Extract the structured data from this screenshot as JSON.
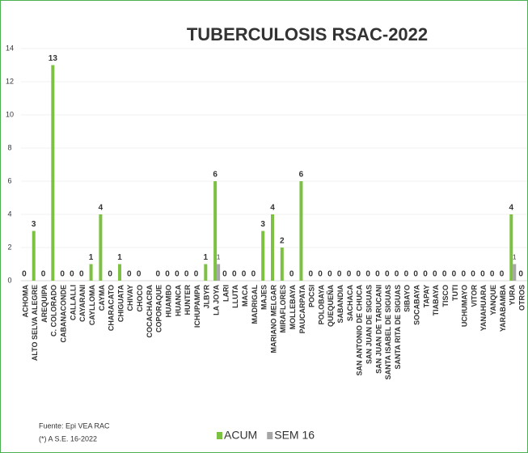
{
  "chart_data": {
    "type": "bar",
    "title": "TUBERCULOSIS RSAC-2022",
    "categories": [
      "ACHOMA",
      "ALTO SELVA ALEGRE",
      "AREQUIPA",
      "C. COLORADO",
      "CABANACONDE",
      "CALLALLI",
      "CAYARANI",
      "CAYLLOMA",
      "CAYMA",
      "CHARACATO",
      "CHIGUATA",
      "CHIVAY",
      "CHOCO",
      "COCACHACRA",
      "COPORAQUE",
      "HUAMBO",
      "HUANCA",
      "HUNTER",
      "ICHUPAMPA",
      "JLBYR",
      "LA JOYA",
      "LARI",
      "LLUTA",
      "MACA",
      "MADRIGAL",
      "MAJES",
      "MARIANO MELGAR",
      "MIRAFLORES",
      "MOLLEBAYA",
      "PAUCARPATA",
      "POCSI",
      "POLOBAYA",
      "QUEQUEÑA",
      "SABANDIA",
      "SACHACA",
      "SAN ANTONIO DE CHUCA",
      "SAN JUAN DE SIGUAS",
      "SAN JUAN DE TARUCANI",
      "SANTA ISABEL DE SIGUAS",
      "SANTA RITA DE SIGUAS",
      "SIBAYO",
      "SOCABAYA",
      "TAPAY",
      "TIABAYA",
      "TISCO",
      "TUTI",
      "UCHUMAYO",
      "VITOR",
      "YANAHUARA",
      "YANQUE",
      "YARABAMBA",
      "YURA",
      "OTROS"
    ],
    "series": [
      {
        "name": "ACUM",
        "color": "#7cc142",
        "values": [
          0,
          3,
          0,
          13,
          0,
          0,
          0,
          1,
          4,
          0,
          1,
          0,
          0,
          null,
          0,
          0,
          0,
          0,
          0,
          1,
          6,
          0,
          0,
          0,
          0,
          3,
          4,
          2,
          0,
          6,
          0,
          0,
          0,
          0,
          0,
          0,
          0,
          0,
          0,
          0,
          0,
          0,
          0,
          0,
          0,
          0,
          0,
          0,
          0,
          0,
          0,
          4,
          0
        ]
      },
      {
        "name": "SEM 16",
        "color": "#a6a6a6",
        "values": [
          null,
          null,
          null,
          null,
          null,
          null,
          null,
          null,
          null,
          null,
          null,
          null,
          null,
          null,
          null,
          null,
          null,
          null,
          null,
          null,
          1,
          null,
          null,
          null,
          null,
          null,
          null,
          null,
          null,
          null,
          null,
          null,
          null,
          null,
          null,
          null,
          null,
          null,
          null,
          null,
          null,
          null,
          null,
          null,
          null,
          null,
          null,
          null,
          null,
          null,
          null,
          1,
          null
        ]
      }
    ],
    "ylim": [
      0,
      14
    ],
    "yticks": [
      0,
      2,
      4,
      6,
      8,
      10,
      12,
      14
    ],
    "footnotes": [
      "Fuente: Epi VEA RAC",
      "(*) A S.E. 16-2022"
    ]
  }
}
